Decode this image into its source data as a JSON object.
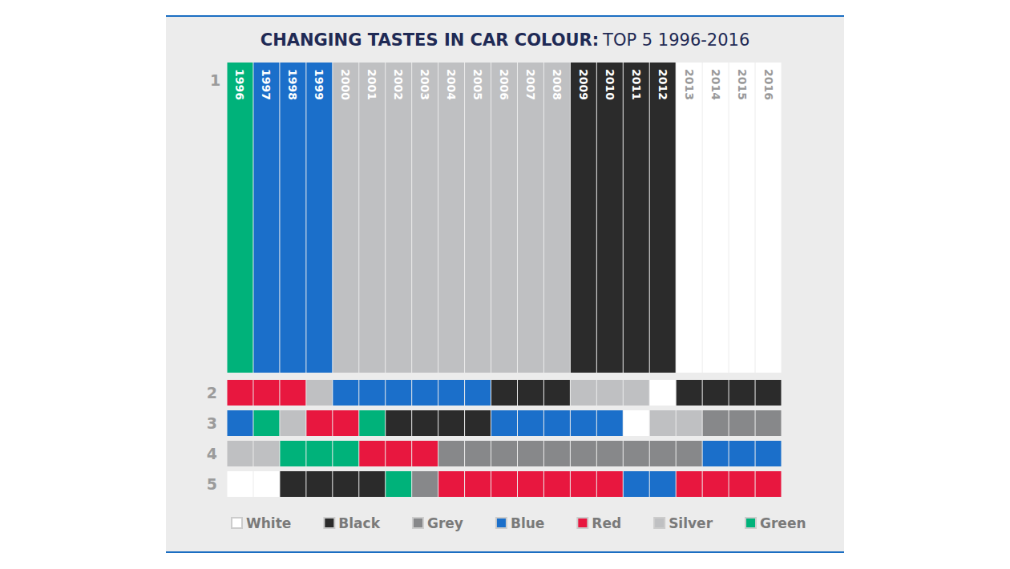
{
  "chart_data": {
    "type": "grid",
    "title": "CHANGING TASTES IN CAR COLOUR:",
    "subtitle": "TOP 5 1996-2016",
    "categories": [
      "1996",
      "1997",
      "1998",
      "1999",
      "2000",
      "2001",
      "2002",
      "2003",
      "2004",
      "2005",
      "2006",
      "2007",
      "2008",
      "2009",
      "2010",
      "2011",
      "2012",
      "2013",
      "2014",
      "2015",
      "2016"
    ],
    "ranks": [
      1,
      2,
      3,
      4,
      5
    ],
    "rows": [
      [
        "Green",
        "Blue",
        "Blue",
        "Blue",
        "Silver",
        "Silver",
        "Silver",
        "Silver",
        "Silver",
        "Silver",
        "Silver",
        "Silver",
        "Silver",
        "Black",
        "Black",
        "Black",
        "Black",
        "White",
        "White",
        "White",
        "White"
      ],
      [
        "Red",
        "Red",
        "Red",
        "Silver",
        "Blue",
        "Blue",
        "Blue",
        "Blue",
        "Blue",
        "Blue",
        "Black",
        "Black",
        "Black",
        "Silver",
        "Silver",
        "Silver",
        "White",
        "Black",
        "Black",
        "Black",
        "Black"
      ],
      [
        "Blue",
        "Green",
        "Silver",
        "Red",
        "Red",
        "Green",
        "Black",
        "Black",
        "Black",
        "Black",
        "Blue",
        "Blue",
        "Blue",
        "Blue",
        "Blue",
        "White",
        "Silver",
        "Silver",
        "Grey",
        "Grey",
        "Grey"
      ],
      [
        "Silver",
        "Silver",
        "Green",
        "Green",
        "Green",
        "Red",
        "Red",
        "Red",
        "Grey",
        "Grey",
        "Grey",
        "Grey",
        "Grey",
        "Grey",
        "Grey",
        "Grey",
        "Grey",
        "Grey",
        "Blue",
        "Blue",
        "Blue"
      ],
      [
        "White",
        "White",
        "Black",
        "Black",
        "Black",
        "Black",
        "Green",
        "Grey",
        "Red",
        "Red",
        "Red",
        "Red",
        "Red",
        "Red",
        "Red",
        "Blue",
        "Blue",
        "Red",
        "Red",
        "Red",
        "Red"
      ]
    ],
    "series": [
      {
        "name": "White",
        "color": "#ffffff"
      },
      {
        "name": "Black",
        "color": "#2b2b2b"
      },
      {
        "name": "Grey",
        "color": "#87888a"
      },
      {
        "name": "Blue",
        "color": "#1b6fca"
      },
      {
        "name": "Red",
        "color": "#e8173f"
      },
      {
        "name": "Silver",
        "color": "#bfc0c2"
      },
      {
        "name": "Green",
        "color": "#00b27a"
      }
    ],
    "legend": "bottom",
    "tick_labels": "y"
  }
}
